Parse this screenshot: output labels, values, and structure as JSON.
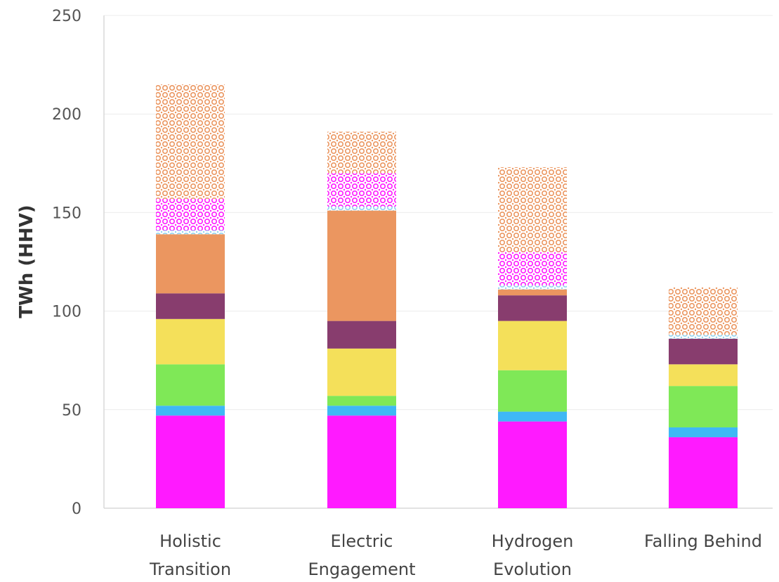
{
  "chart_data": {
    "type": "bar",
    "stacked": true,
    "title": "",
    "xlabel": "",
    "ylabel": "TWh (HHV)",
    "ylim": [
      0,
      250
    ],
    "yticks": [
      0,
      50,
      100,
      150,
      200,
      250
    ],
    "grid": true,
    "legend": "none",
    "categories": [
      [
        "Holistic",
        "Transition"
      ],
      [
        "Electric",
        "Engagement"
      ],
      [
        "Hydrogen",
        "Evolution"
      ],
      [
        "Falling Behind"
      ]
    ],
    "series": [
      {
        "color": "#ff1aff",
        "pattern": "solid",
        "values": [
          47,
          47,
          44,
          36
        ]
      },
      {
        "color": "#3fb8f5",
        "pattern": "solid",
        "values": [
          5,
          5,
          5,
          5
        ]
      },
      {
        "color": "#7fe857",
        "pattern": "solid",
        "values": [
          21,
          5,
          21,
          21
        ]
      },
      {
        "color": "#f4e05a",
        "pattern": "solid",
        "values": [
          23,
          24,
          25,
          11
        ]
      },
      {
        "color": "#883d6e",
        "pattern": "solid",
        "values": [
          13,
          14,
          13,
          13
        ]
      },
      {
        "color": "#eb9660",
        "pattern": "solid",
        "values": [
          30,
          56,
          3,
          0
        ]
      },
      {
        "color": "#8fd3f0",
        "pattern": "dotted",
        "values": [
          2,
          2,
          2,
          2
        ]
      },
      {
        "color": "#ff1aff",
        "pattern": "dotted",
        "values": [
          16,
          17,
          17,
          0
        ]
      },
      {
        "color": "#eb9660",
        "pattern": "dotted",
        "values": [
          58,
          21,
          43,
          24
        ]
      }
    ]
  }
}
